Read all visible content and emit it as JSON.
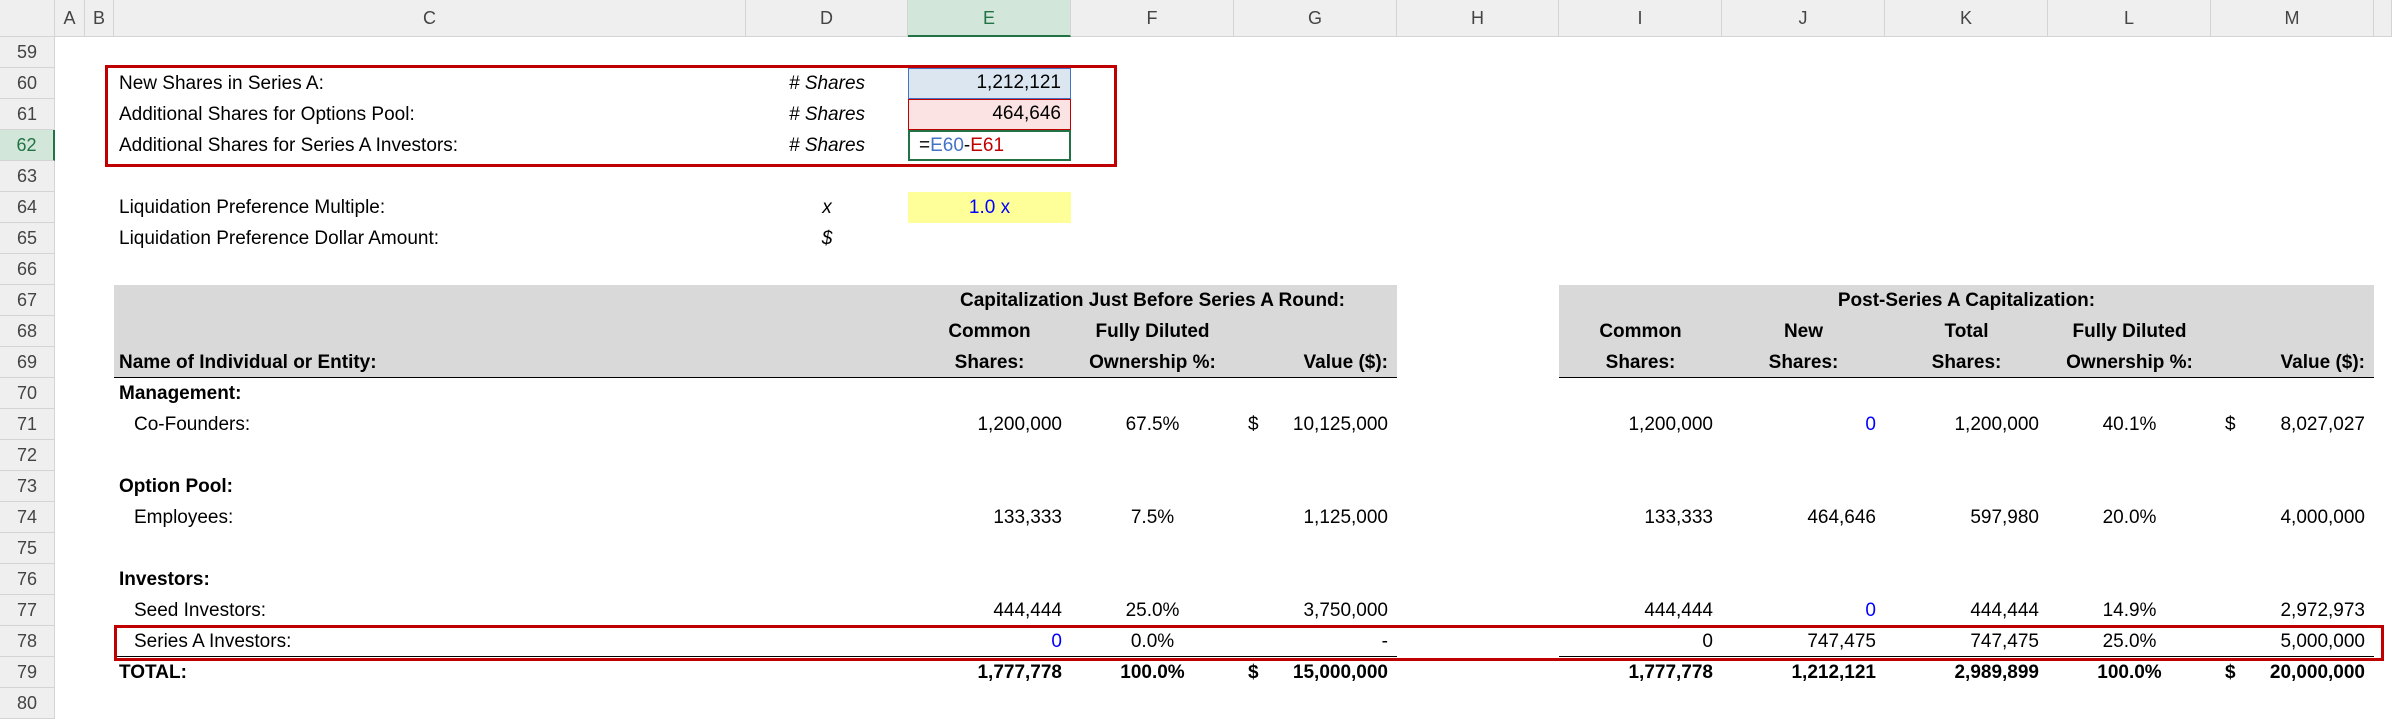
{
  "sheet": {
    "columns": [
      "A",
      "B",
      "C",
      "D",
      "E",
      "F",
      "G",
      "H",
      "I",
      "J",
      "K",
      "L",
      "M"
    ],
    "selected_column": 4,
    "group_titles": [
      {
        "text": "Capitalization Just Before Series A Round:",
        "span": [
          "E",
          "G"
        ]
      },
      {
        "text": "Post-Series A Capitalization:",
        "span": [
          "I",
          "M"
        ]
      }
    ],
    "rows": [
      {
        "label": "59",
        "cells": {}
      },
      {
        "label": "60",
        "cells": {
          "C": {
            "text": "New Shares in Series A:"
          },
          "D": {
            "text": "# Shares"
          },
          "E": {
            "text": "1,212,121",
            "fill": "#dce6f1",
            "border": "#4472c4"
          }
        }
      },
      {
        "label": "61",
        "cells": {
          "C": {
            "text": "Additional Shares for Options Pool:"
          },
          "D": {
            "text": "# Shares"
          },
          "E": {
            "text": "464,646",
            "fill": "#fbe3e3",
            "border": "#c00000"
          }
        }
      },
      {
        "label": "62",
        "selected": true,
        "cells": {
          "C": {
            "text": "Additional Shares for Series A Investors:"
          },
          "D": {
            "text": "# Shares"
          },
          "E": {
            "text": "=E60-E61",
            "formula": true,
            "align": "left",
            "border": "#217346"
          }
        }
      },
      {
        "label": "63",
        "cells": {}
      },
      {
        "label": "64",
        "cells": {
          "C": {
            "text": "Liquidation Preference Multiple:"
          },
          "D": {
            "text": "x"
          },
          "E": {
            "text": "1.0 x",
            "fill": "#ffff99",
            "color": "#0000ff",
            "align": "center"
          }
        }
      },
      {
        "label": "65",
        "cells": {
          "C": {
            "text": "Liquidation Preference Dollar Amount:"
          },
          "D": {
            "text": "$"
          }
        }
      },
      {
        "label": "66",
        "cells": {}
      },
      {
        "label": "67",
        "cells": {}
      },
      {
        "label": "68",
        "header": true,
        "cells": {
          "E": {
            "text": "Common"
          },
          "F": {
            "text": "Fully Diluted"
          },
          "I": {
            "text": "Common"
          },
          "J": {
            "text": "New"
          },
          "K": {
            "text": "Total"
          },
          "L": {
            "text": "Fully Diluted"
          }
        }
      },
      {
        "label": "69",
        "header": true,
        "cells": {
          "C": {
            "text": "Name of Individual or Entity:",
            "align": "left"
          },
          "E": {
            "text": "Shares:"
          },
          "F": {
            "text": "Ownership %:"
          },
          "G": {
            "text": "Value ($):",
            "align": "right"
          },
          "I": {
            "text": "Shares:"
          },
          "J": {
            "text": "Shares:"
          },
          "K": {
            "text": "Shares:"
          },
          "L": {
            "text": "Ownership %:"
          },
          "M": {
            "text": "Value ($):",
            "align": "right"
          }
        }
      },
      {
        "label": "70",
        "bold": true,
        "cells": {
          "C": {
            "text": "Management:"
          }
        }
      },
      {
        "label": "71",
        "cells": {
          "C": {
            "text": "Co-Founders:",
            "indent": true
          },
          "E": {
            "text": "1,200,000"
          },
          "F": {
            "text": "67.5%"
          },
          "G": {
            "text": "10,125,000",
            "currency": "$"
          },
          "I": {
            "text": "1,200,000"
          },
          "J": {
            "text": "0",
            "color": "#0000ff"
          },
          "K": {
            "text": "1,200,000"
          },
          "L": {
            "text": "40.1%"
          },
          "M": {
            "text": "8,027,027",
            "currency": "$"
          }
        }
      },
      {
        "label": "72",
        "cells": {}
      },
      {
        "label": "73",
        "bold": true,
        "cells": {
          "C": {
            "text": "Option Pool:"
          }
        }
      },
      {
        "label": "74",
        "cells": {
          "C": {
            "text": "Employees:",
            "indent": true
          },
          "E": {
            "text": "133,333"
          },
          "F": {
            "text": "7.5%"
          },
          "G": {
            "text": "1,125,000"
          },
          "I": {
            "text": "133,333"
          },
          "J": {
            "text": "464,646"
          },
          "K": {
            "text": "597,980"
          },
          "L": {
            "text": "20.0%"
          },
          "M": {
            "text": "4,000,000"
          }
        }
      },
      {
        "label": "75",
        "cells": {}
      },
      {
        "label": "76",
        "bold": true,
        "cells": {
          "C": {
            "text": "Investors:"
          }
        }
      },
      {
        "label": "77",
        "cells": {
          "C": {
            "text": "Seed Investors:",
            "indent": true
          },
          "E": {
            "text": "444,444"
          },
          "F": {
            "text": "25.0%"
          },
          "G": {
            "text": "3,750,000"
          },
          "I": {
            "text": "444,444"
          },
          "J": {
            "text": "0",
            "color": "#0000ff"
          },
          "K": {
            "text": "444,444"
          },
          "L": {
            "text": "14.9%"
          },
          "M": {
            "text": "2,972,973"
          }
        }
      },
      {
        "label": "78",
        "cells": {
          "C": {
            "text": "Series A Investors:",
            "indent": true
          },
          "E": {
            "text": "0",
            "color": "#0000ff"
          },
          "F": {
            "text": "0.0%"
          },
          "G": {
            "text": "-"
          },
          "I": {
            "text": "0"
          },
          "J": {
            "text": "747,475"
          },
          "K": {
            "text": "747,475"
          },
          "L": {
            "text": "25.0%"
          },
          "M": {
            "text": "5,000,000"
          }
        }
      },
      {
        "label": "79",
        "bold": true,
        "total": true,
        "cells": {
          "C": {
            "text": "TOTAL:"
          },
          "E": {
            "text": "1,777,778"
          },
          "F": {
            "text": "100.0%"
          },
          "G": {
            "text": "15,000,000",
            "currency": "$"
          },
          "I": {
            "text": "1,777,778"
          },
          "J": {
            "text": "1,212,121"
          },
          "K": {
            "text": "2,989,899"
          },
          "L": {
            "text": "100.0%"
          },
          "M": {
            "text": "20,000,000",
            "currency": "$"
          }
        }
      },
      {
        "label": "80",
        "cells": {}
      }
    ]
  }
}
